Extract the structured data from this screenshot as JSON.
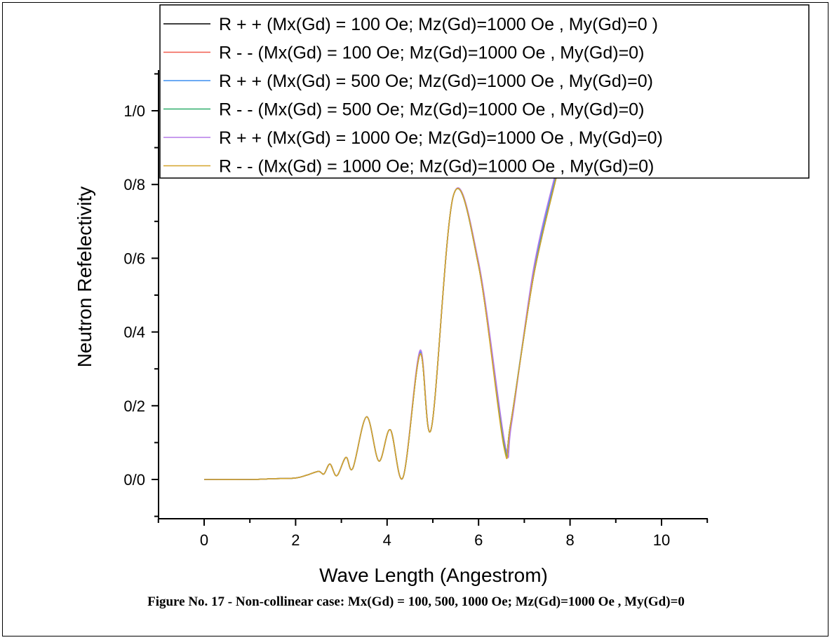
{
  "caption": "Figure No. 17 - Non-collinear case: Mx(Gd) = 100, 500, 1000 Oe; Mz(Gd)=1000 Oe , My(Gd)=0",
  "chart_data": {
    "type": "line",
    "xlabel": "Wave Length (Angestrom)",
    "ylabel": "Neutron Refelectivity",
    "xlim": [
      -1.0,
      11.0
    ],
    "ylim": [
      -0.1,
      1.1
    ],
    "x_ticks": [
      0,
      2,
      4,
      6,
      8,
      10
    ],
    "x_tick_labels": [
      "0",
      "2",
      "4",
      "6",
      "8",
      "10"
    ],
    "y_ticks": [
      0,
      0.2,
      0.4,
      0.6,
      0.8,
      1.0
    ],
    "y_tick_labels": [
      "0/0",
      "0/2",
      "0/4",
      "0/6",
      "0/8",
      "1/0"
    ],
    "grid": false,
    "legend_position": "top-right",
    "series": [
      {
        "name": "R + + (Mx(Gd) = 100 Oe; Mz(Gd)=1000 Oe , My(Gd)=0 )",
        "color": "#000000",
        "x": [
          0,
          1,
          1.5,
          2.0,
          2.25,
          2.5,
          2.62,
          2.75,
          2.9,
          3.1,
          3.25,
          3.55,
          3.82,
          4.07,
          4.35,
          4.72,
          4.97,
          5.45,
          6.0,
          6.55,
          6.7,
          7.2,
          7.7
        ],
        "y": [
          0,
          0,
          0.002,
          0.004,
          0.012,
          0.022,
          0.015,
          0.042,
          0.01,
          0.06,
          0.03,
          0.17,
          0.05,
          0.135,
          0.006,
          0.34,
          0.14,
          0.77,
          0.58,
          0.1,
          0.15,
          0.55,
          0.82
        ]
      },
      {
        "name": "R - - (Mx(Gd) = 100 Oe; Mz(Gd)=1000 Oe , My(Gd)=0)",
        "color": "#f15b4e",
        "x": [
          0,
          1,
          1.5,
          2.0,
          2.25,
          2.5,
          2.62,
          2.75,
          2.9,
          3.1,
          3.25,
          3.55,
          3.82,
          4.07,
          4.35,
          4.72,
          4.97,
          5.45,
          6.0,
          6.55,
          6.7,
          7.2,
          7.7
        ],
        "y": [
          0,
          0,
          0.002,
          0.004,
          0.012,
          0.022,
          0.015,
          0.042,
          0.01,
          0.06,
          0.03,
          0.17,
          0.05,
          0.135,
          0.006,
          0.34,
          0.14,
          0.77,
          0.58,
          0.1,
          0.15,
          0.55,
          0.82
        ]
      },
      {
        "name": "R + + (Mx(Gd) = 500 Oe; Mz(Gd)=1000 Oe , My(Gd)=0)",
        "color": "#3c8df0",
        "x": [
          0,
          1,
          1.5,
          2.0,
          2.25,
          2.5,
          2.62,
          2.75,
          2.9,
          3.1,
          3.25,
          3.55,
          3.82,
          4.07,
          4.35,
          4.72,
          4.97,
          5.45,
          6.0,
          6.55,
          6.7,
          7.2,
          7.7
        ],
        "y": [
          0,
          0,
          0.002,
          0.004,
          0.012,
          0.022,
          0.015,
          0.042,
          0.01,
          0.06,
          0.03,
          0.17,
          0.05,
          0.135,
          0.006,
          0.345,
          0.14,
          0.77,
          0.585,
          0.098,
          0.15,
          0.56,
          0.83
        ]
      },
      {
        "name": "R - - (Mx(Gd) = 500 Oe; Mz(Gd)=1000 Oe , My(Gd)=0)",
        "color": "#2fae6a",
        "x": [
          0,
          1,
          1.5,
          2.0,
          2.25,
          2.5,
          2.62,
          2.75,
          2.9,
          3.1,
          3.25,
          3.55,
          3.82,
          4.07,
          4.35,
          4.72,
          4.97,
          5.45,
          6.0,
          6.55,
          6.7,
          7.2,
          7.7
        ],
        "y": [
          0,
          0,
          0.002,
          0.004,
          0.012,
          0.022,
          0.015,
          0.042,
          0.01,
          0.06,
          0.03,
          0.17,
          0.05,
          0.135,
          0.006,
          0.34,
          0.14,
          0.77,
          0.58,
          0.1,
          0.15,
          0.55,
          0.82
        ]
      },
      {
        "name": "R + + (Mx(Gd) = 1000 Oe; Mz(Gd)=1000 Oe , My(Gd)=0)",
        "color": "#b57be8",
        "x": [
          0,
          1,
          1.5,
          2.0,
          2.25,
          2.5,
          2.62,
          2.75,
          2.9,
          3.1,
          3.25,
          3.55,
          3.82,
          4.07,
          4.35,
          4.72,
          4.97,
          5.45,
          6.0,
          6.58,
          6.72,
          7.2,
          7.7
        ],
        "y": [
          0,
          0,
          0.002,
          0.004,
          0.012,
          0.022,
          0.015,
          0.042,
          0.01,
          0.06,
          0.03,
          0.17,
          0.05,
          0.135,
          0.006,
          0.35,
          0.14,
          0.77,
          0.59,
          0.095,
          0.15,
          0.57,
          0.84
        ]
      },
      {
        "name": "R - - (Mx(Gd) = 1000 Oe; Mz(Gd)=1000 Oe , My(Gd)=0)",
        "color": "#d4a52a",
        "x": [
          0,
          1,
          1.5,
          2.0,
          2.25,
          2.5,
          2.62,
          2.75,
          2.9,
          3.1,
          3.25,
          3.55,
          3.82,
          4.07,
          4.35,
          4.72,
          4.97,
          5.45,
          6.0,
          6.55,
          6.7,
          7.2,
          7.7
        ],
        "y": [
          0,
          0,
          0.002,
          0.004,
          0.012,
          0.022,
          0.015,
          0.042,
          0.01,
          0.06,
          0.03,
          0.17,
          0.05,
          0.135,
          0.006,
          0.34,
          0.14,
          0.77,
          0.58,
          0.09,
          0.15,
          0.55,
          0.82
        ]
      }
    ]
  }
}
